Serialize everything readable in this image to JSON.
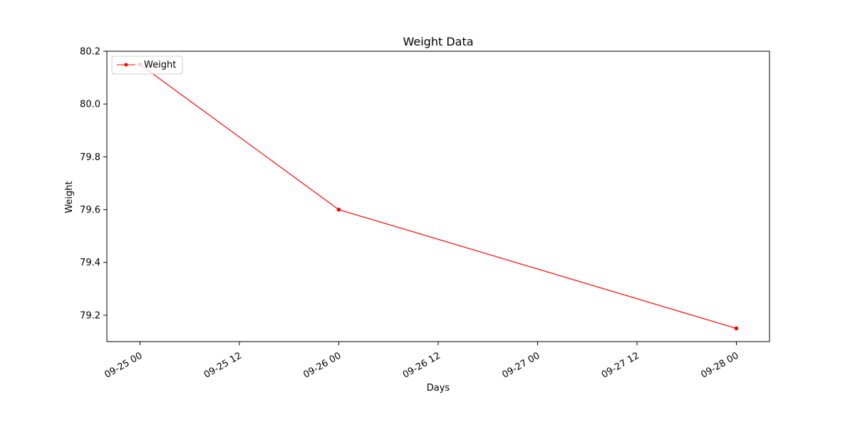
{
  "chart_data": {
    "type": "line",
    "title": "Weight Data",
    "xlabel": "Days",
    "ylabel": "Weight",
    "x_ticks": [
      "09-25 00",
      "09-25 12",
      "09-26 00",
      "09-26 12",
      "09-27 00",
      "09-27 12",
      "09-28 00"
    ],
    "y_ticks": [
      "79.2",
      "79.4",
      "79.6",
      "79.8",
      "80.0",
      "80.2"
    ],
    "ylim": [
      79.1,
      80.2
    ],
    "xlim": [
      "09-24 20",
      "09-28 04"
    ],
    "series": [
      {
        "name": "Weight",
        "x": [
          "09-25 00",
          "09-26 00",
          "09-28 00"
        ],
        "y": [
          80.15,
          79.6,
          79.15
        ],
        "color": "#ff0000",
        "marker": "point"
      }
    ],
    "legend_position": "top-left",
    "grid": false
  }
}
